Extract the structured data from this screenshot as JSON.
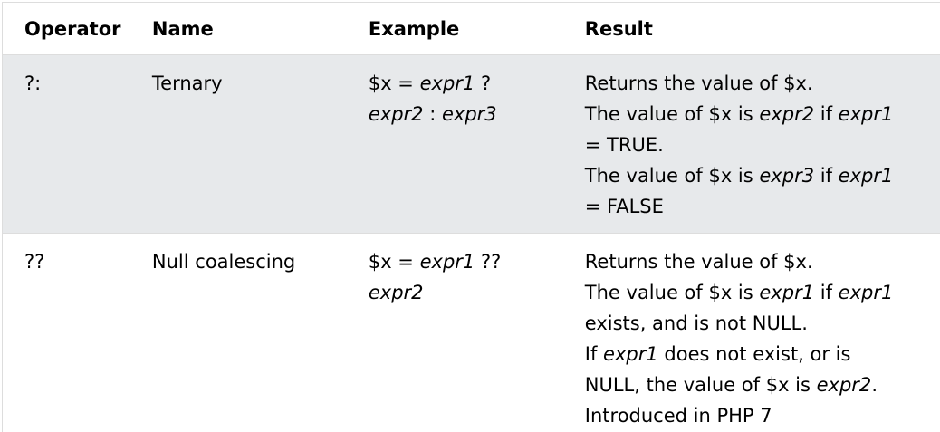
{
  "header": {
    "operator": "Operator",
    "name": "Name",
    "example": "Example",
    "result": "Result"
  },
  "rows": [
    {
      "operator": "?:",
      "name": "Ternary",
      "example": {
        "p1": "$x = ",
        "i1": "expr1",
        "p2": " ?\n",
        "i2": "expr2",
        "p3": " : ",
        "i3": "expr3"
      },
      "result": {
        "l1": "Returns the value of $x.",
        "l2a": "The value of $x is ",
        "l2b": "expr2",
        "l2c": " if ",
        "l2d": "expr1",
        "l2e": "\n= TRUE.",
        "l3a": "The value of $x is ",
        "l3b": "expr3",
        "l3c": " if ",
        "l3d": "expr1",
        "l3e": "\n= FALSE"
      }
    },
    {
      "operator": "??",
      "name": "Null coalescing",
      "example": {
        "p1": "$x = ",
        "i1": "expr1",
        "p2": " ??\n",
        "i2": "expr2"
      },
      "result": {
        "l1": "Returns the value of $x.",
        "l2a": "The value of $x is ",
        "l2b": "expr1",
        "l2c": " if ",
        "l2d": "expr1",
        "l2e": "\nexists, and is not NULL.",
        "l3a": "If ",
        "l3b": "expr1",
        "l3c": " does not exist, or is\nNULL, the value of $x is ",
        "l3d": "expr2",
        "l3e": ".",
        "l4": "Introduced in PHP 7"
      }
    }
  ]
}
